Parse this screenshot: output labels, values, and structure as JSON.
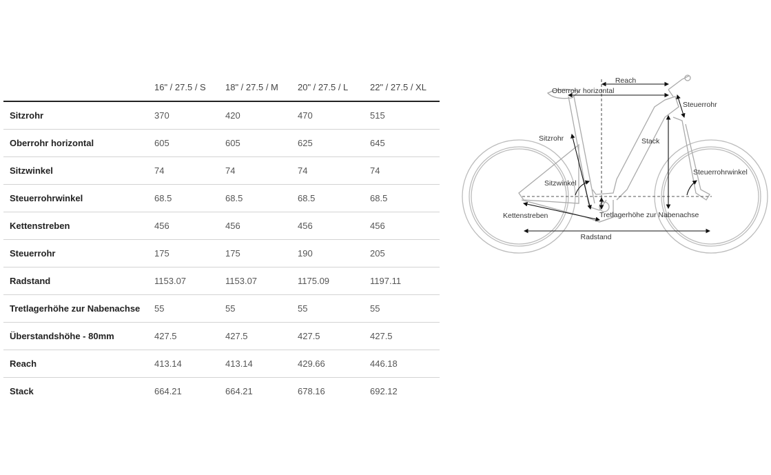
{
  "table": {
    "columns": [
      "",
      "16\" / 27.5 / S",
      "18\" / 27.5 / M",
      "20\" / 27.5 / L",
      "22\" / 27.5 / XL"
    ],
    "rows": [
      {
        "label": "Sitzrohr",
        "values": [
          "370",
          "420",
          "470",
          "515"
        ]
      },
      {
        "label": "Oberrohr horizontal",
        "values": [
          "605",
          "605",
          "625",
          "645"
        ]
      },
      {
        "label": "Sitzwinkel",
        "values": [
          "74",
          "74",
          "74",
          "74"
        ]
      },
      {
        "label": "Steuerrohrwinkel",
        "values": [
          "68.5",
          "68.5",
          "68.5",
          "68.5"
        ]
      },
      {
        "label": "Kettenstreben",
        "values": [
          "456",
          "456",
          "456",
          "456"
        ]
      },
      {
        "label": "Steuerrohr",
        "values": [
          "175",
          "175",
          "190",
          "205"
        ]
      },
      {
        "label": "Radstand",
        "values": [
          "1153.07",
          "1153.07",
          "1175.09",
          "1197.11"
        ]
      },
      {
        "label": "Tretlagerhöhe zur Nabenachse",
        "values": [
          "55",
          "55",
          "55",
          "55"
        ]
      },
      {
        "label": "Überstandshöhe - 80mm",
        "values": [
          "427.5",
          "427.5",
          "427.5",
          "427.5"
        ]
      },
      {
        "label": "Reach",
        "values": [
          "413.14",
          "413.14",
          "429.66",
          "446.18"
        ]
      },
      {
        "label": "Stack",
        "values": [
          "664.21",
          "664.21",
          "678.16",
          "692.12"
        ]
      }
    ]
  },
  "diagram": {
    "labels": {
      "reach": "Reach",
      "oberrohr": "Oberrohr horizontal",
      "steuerrohr": "Steuerrohr",
      "sitzrohr": "Sitzrohr",
      "stack": "Stack",
      "steuerrohrwinkel": "Steuerrohrwinkel",
      "sitzwinkel": "Sitzwinkel",
      "kettenstreben": "Kettenstreben",
      "tretlager": "Tretlagerhöhe zur Nabenachse",
      "radstand": "Radstand"
    }
  }
}
